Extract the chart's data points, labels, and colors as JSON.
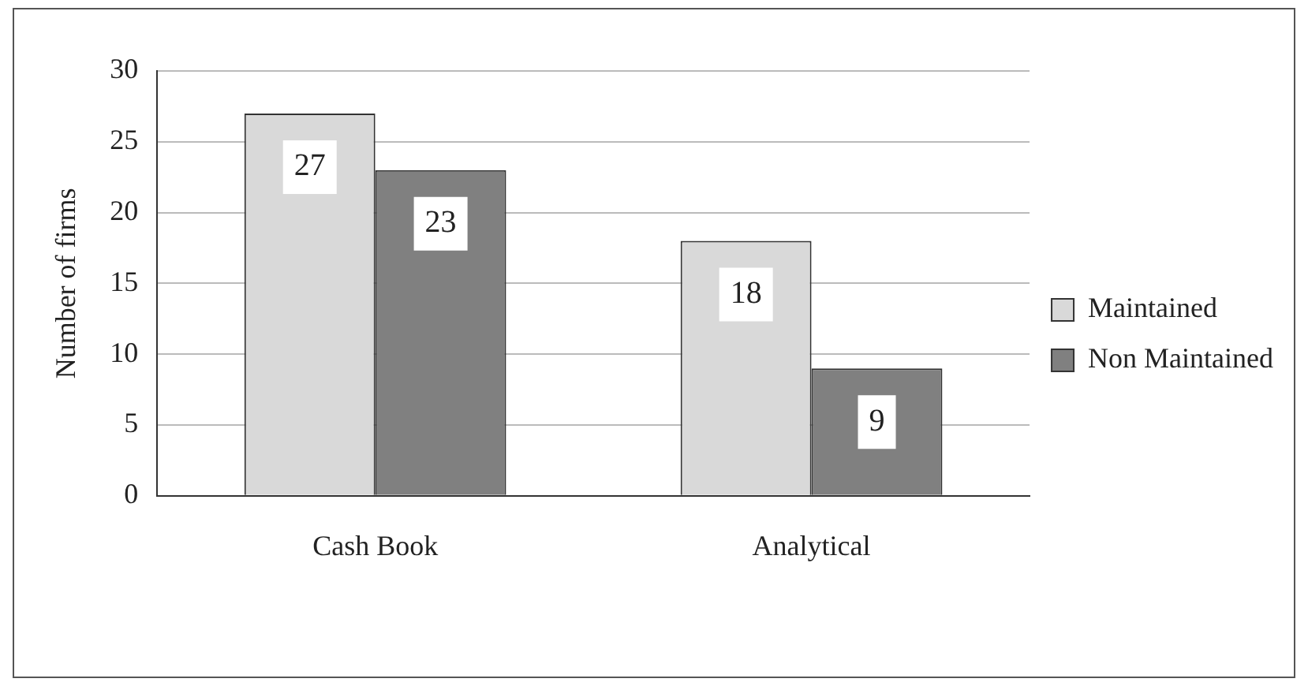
{
  "chart_data": {
    "type": "bar",
    "ylabel": "Number of firms",
    "categories": [
      "Cash Book",
      "Analytical"
    ],
    "series": [
      {
        "name": "Maintained",
        "color": "#d9d9d9",
        "values": [
          27,
          18
        ]
      },
      {
        "name": "Non Maintained",
        "color": "#808080",
        "values": [
          23,
          9
        ]
      }
    ],
    "ylim": [
      0,
      30
    ],
    "yticks": [
      0,
      5,
      10,
      15,
      20,
      25,
      30
    ],
    "grid": "y",
    "legend": "right",
    "data_labels": true
  }
}
